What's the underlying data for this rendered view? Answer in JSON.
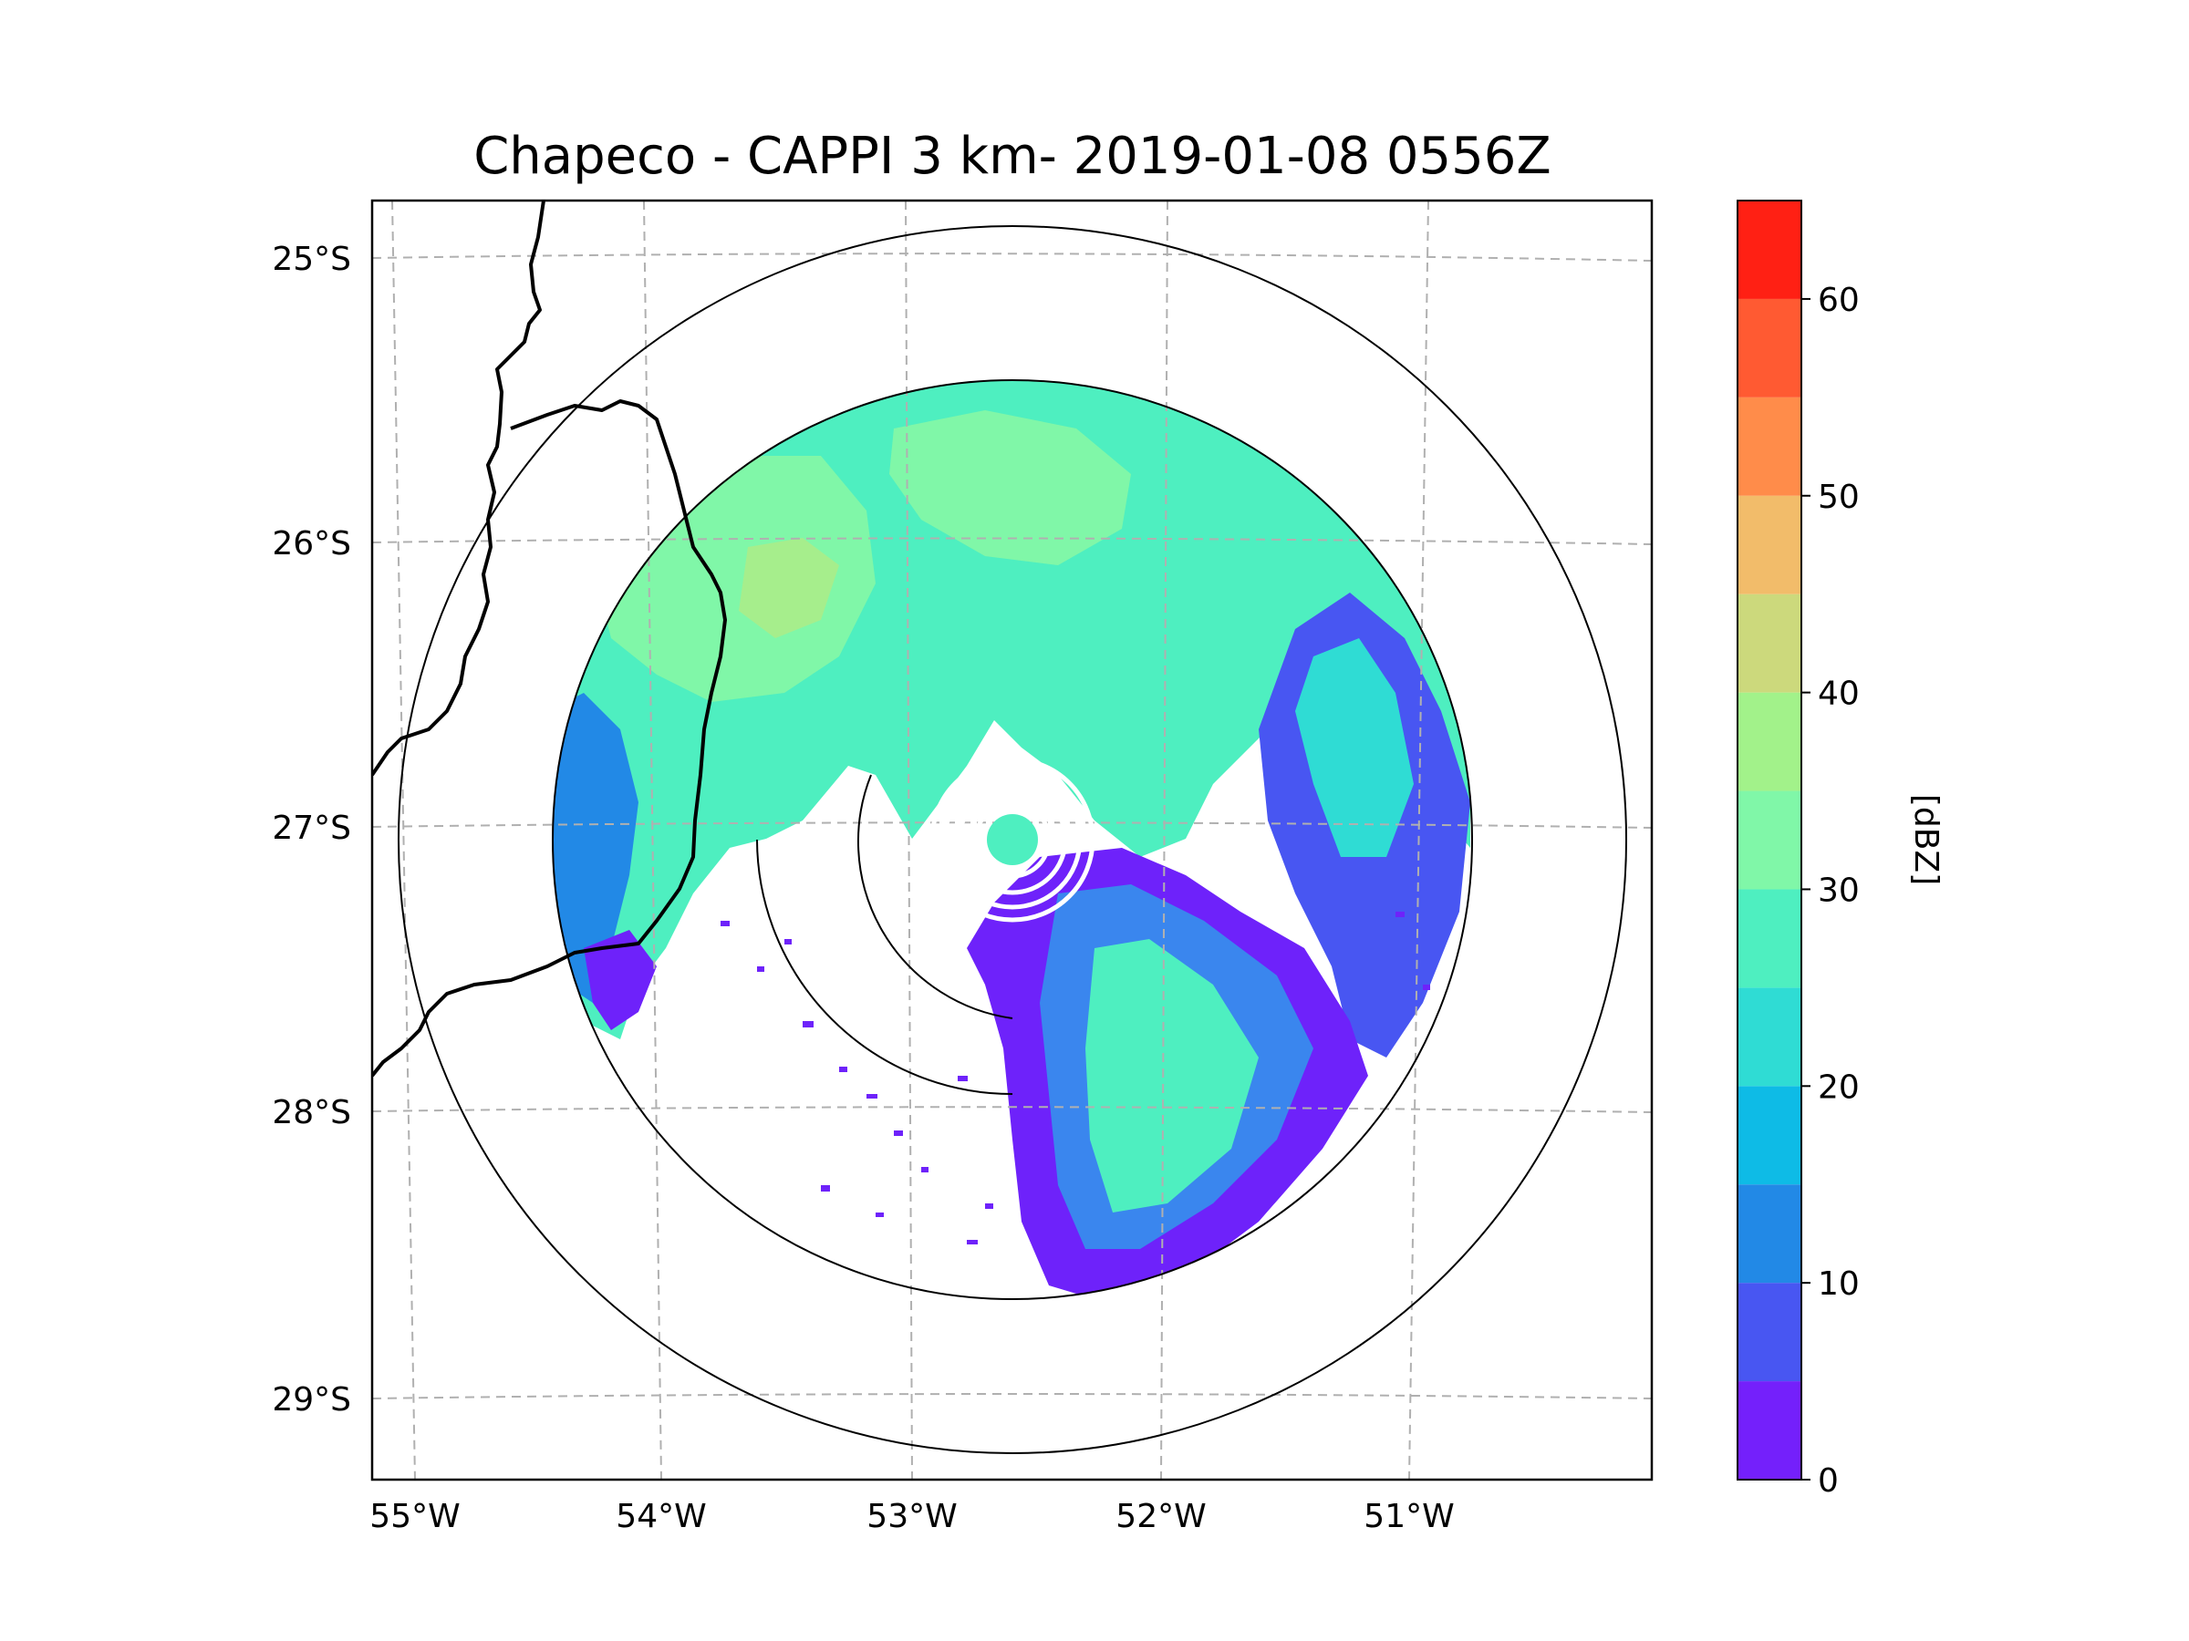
{
  "title": "Chapeco - CAPPI 3 km- 2019-01-08 0556Z",
  "map": {
    "lat_ticks": [
      "25°S",
      "26°S",
      "27°S",
      "28°S",
      "29°S"
    ],
    "lon_ticks": [
      "55°W",
      "54°W",
      "53°W",
      "52°W",
      "51°W"
    ],
    "gridlines": "dashed",
    "range_rings": "concentric rings centred on radar",
    "field_colors": {
      "weak": "#6e22fa",
      "low": "#3a86ee",
      "moderate": "#3ee0c8",
      "stronger": "#7af2ac",
      "peak": "#a6ee8c"
    }
  },
  "colorbar": {
    "label": "[dBZ]",
    "tick_labels": [
      "0",
      "10",
      "20",
      "30",
      "40",
      "50",
      "60"
    ],
    "ticks": [
      0,
      10,
      20,
      30,
      40,
      50,
      60
    ],
    "range": [
      0,
      65
    ],
    "levels": [
      {
        "from": 0,
        "to": 5,
        "color": "#7420fb"
      },
      {
        "from": 5,
        "to": 10,
        "color": "#4856f2"
      },
      {
        "from": 10,
        "to": 15,
        "color": "#2289e6"
      },
      {
        "from": 15,
        "to": 20,
        "color": "#0ebbe6"
      },
      {
        "from": 20,
        "to": 25,
        "color": "#2fdcd4"
      },
      {
        "from": 25,
        "to": 30,
        "color": "#4eefc0"
      },
      {
        "from": 30,
        "to": 35,
        "color": "#80f7a8"
      },
      {
        "from": 35,
        "to": 40,
        "color": "#a2f28a"
      },
      {
        "from": 40,
        "to": 45,
        "color": "#ccd97c"
      },
      {
        "from": 45,
        "to": 50,
        "color": "#f2bc6a"
      },
      {
        "from": 50,
        "to": 55,
        "color": "#ff8c4a"
      },
      {
        "from": 55,
        "to": 60,
        "color": "#ff5a32"
      },
      {
        "from": 60,
        "to": 65,
        "color": "#ff2014"
      }
    ]
  }
}
